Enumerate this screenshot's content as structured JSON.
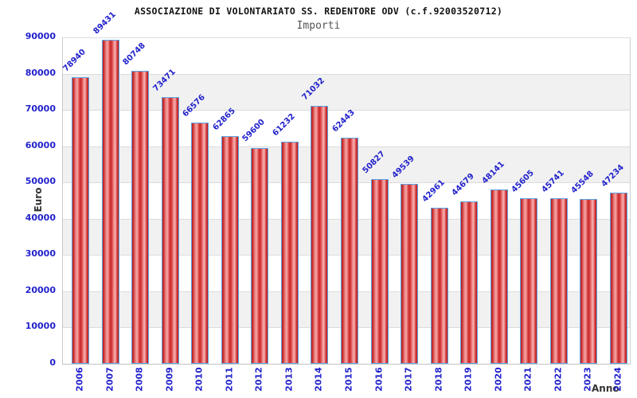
{
  "chart_data": {
    "type": "bar",
    "title": "ASSOCIAZIONE DI VOLONTARIATO SS. REDENTORE ODV (c.f.92003520712)",
    "subtitle": "Importi",
    "xlabel": "Anno",
    "ylabel": "Euro",
    "categories": [
      "2006",
      "2007",
      "2008",
      "2009",
      "2010",
      "2011",
      "2012",
      "2013",
      "2014",
      "2015",
      "2016",
      "2017",
      "2018",
      "2019",
      "2020",
      "2021",
      "2022",
      "2023",
      "2024"
    ],
    "values": [
      78940,
      89431,
      80748,
      73471,
      66576,
      62865,
      59600,
      61232,
      71032,
      62443,
      50827,
      49539,
      42961,
      44679,
      48141,
      45605,
      45741,
      45548,
      47234
    ],
    "ylim": [
      0,
      90000
    ],
    "ytick_step": 10000,
    "grid": true,
    "legend": "none",
    "colors": {
      "tick_text": "#2222cc",
      "value_label_text": "#2222cc",
      "bar_border": "#5ca4e4",
      "bar_dark": "#b71c1c",
      "bar_light": "#f6aaaa",
      "band_alt": "#f1f1f1",
      "band_main": "#ffffff",
      "gridline": "#dcdcdc",
      "axis_title_text": "#333333",
      "title_text": "#111111",
      "subtitle_text": "#555555"
    }
  }
}
